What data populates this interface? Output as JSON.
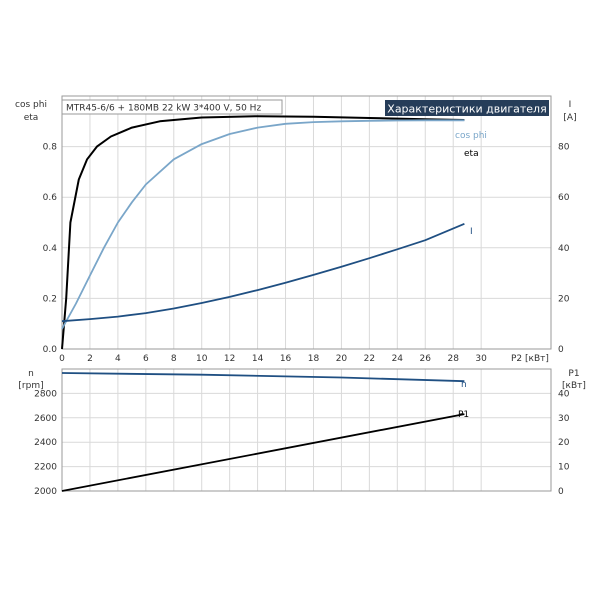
{
  "header": {
    "info": "MTR45-6/6 + 180MB  22 kW  3*400 V, 50 Hz",
    "badge": "Характеристики двигателя"
  },
  "colors": {
    "eta": "#000000",
    "cos_phi": "#7aa6c9",
    "current": "#1f4f82",
    "n": "#1f4f82",
    "p1": "#000000",
    "grid": "#d9d9d9",
    "badge_bg": "#263d59"
  },
  "chart_data": [
    {
      "type": "line",
      "left_axis_label": [
        "cos phi",
        "eta"
      ],
      "right_axis_label": [
        "I",
        "[A]"
      ],
      "xlabel": "P2 [кВт]",
      "xlim": [
        0,
        35
      ],
      "xticks": [
        0,
        2,
        4,
        6,
        8,
        10,
        12,
        14,
        16,
        18,
        20,
        22,
        24,
        26,
        28,
        30
      ],
      "ylim_left": [
        0,
        1.0
      ],
      "yticks_left": [
        0.0,
        0.2,
        0.4,
        0.6,
        0.8
      ],
      "ylim_right": [
        0,
        100
      ],
      "yticks_right": [
        0,
        20,
        40,
        60,
        80
      ],
      "grid": true,
      "series": [
        {
          "name": "eta",
          "axis": "left",
          "x": [
            0,
            0.3,
            0.6,
            1.2,
            1.8,
            2.5,
            3.5,
            5,
            7,
            10,
            14,
            18,
            22,
            26,
            28.8
          ],
          "y": [
            0.0,
            0.2,
            0.5,
            0.67,
            0.75,
            0.8,
            0.84,
            0.875,
            0.9,
            0.915,
            0.92,
            0.918,
            0.913,
            0.908,
            0.905
          ]
        },
        {
          "name": "cos phi",
          "axis": "left",
          "x": [
            0,
            1,
            2,
            3,
            4,
            5,
            6,
            8,
            10,
            12,
            14,
            16,
            18,
            20,
            22,
            24,
            26,
            28.8
          ],
          "y": [
            0.08,
            0.18,
            0.29,
            0.4,
            0.5,
            0.58,
            0.65,
            0.75,
            0.81,
            0.85,
            0.875,
            0.89,
            0.897,
            0.9,
            0.902,
            0.903,
            0.904,
            0.904
          ]
        },
        {
          "name": "I",
          "axis": "right",
          "x": [
            0,
            2,
            4,
            6,
            8,
            10,
            12,
            14,
            16,
            18,
            20,
            22,
            24,
            26,
            28.8
          ],
          "y": [
            11,
            11.8,
            12.8,
            14.2,
            16,
            18.2,
            20.6,
            23.3,
            26.2,
            29.3,
            32.5,
            35.9,
            39.4,
            43,
            49.5
          ]
        }
      ]
    },
    {
      "type": "line",
      "left_axis_label": [
        "n",
        "[rpm]"
      ],
      "right_axis_label": [
        "P1",
        "[кВт]"
      ],
      "xlim": [
        0,
        35
      ],
      "ylim_left": [
        2000,
        3000
      ],
      "yticks_left": [
        2000,
        2200,
        2400,
        2600,
        2800
      ],
      "ylim_right": [
        0,
        50
      ],
      "yticks_right": [
        0,
        10,
        20,
        30,
        40
      ],
      "grid": true,
      "series": [
        {
          "name": "n",
          "axis": "left",
          "x": [
            0,
            10,
            20,
            28.8
          ],
          "y": [
            2967,
            2953,
            2930,
            2900
          ]
        },
        {
          "name": "P1",
          "axis": "right",
          "x": [
            0,
            28.8
          ],
          "y": [
            0,
            31.5
          ]
        }
      ]
    }
  ]
}
